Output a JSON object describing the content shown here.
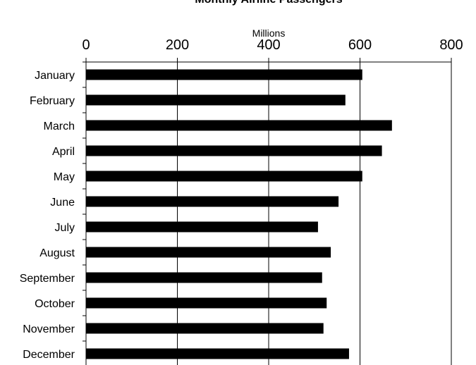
{
  "chart_data": {
    "type": "bar",
    "orientation": "horizontal",
    "title": "Monthly Airline Passengers",
    "xlabel": "Millions",
    "ylabel": "",
    "xlim": [
      0,
      800
    ],
    "x_ticks": [
      "0",
      "200",
      "400",
      "600",
      "800"
    ],
    "x_axis_position": "top",
    "grid": true,
    "categories": [
      "January",
      "February",
      "March",
      "April",
      "May",
      "June",
      "July",
      "August",
      "September",
      "October",
      "November",
      "December"
    ],
    "values": [
      605,
      568,
      670,
      648,
      605,
      553,
      508,
      536,
      517,
      527,
      520,
      576
    ],
    "bar_color": "#000000",
    "gridline_color": "#000000"
  }
}
